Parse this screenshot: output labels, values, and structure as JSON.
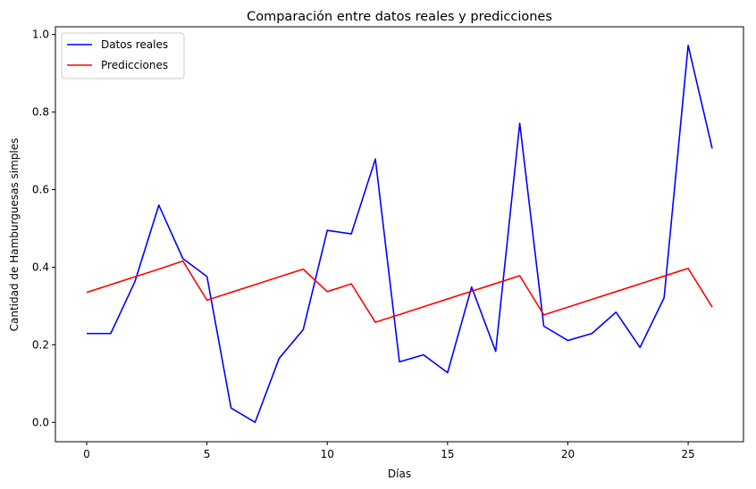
{
  "chart_data": {
    "type": "line",
    "title": "Comparación entre datos reales y predicciones",
    "xlabel": "Días",
    "ylabel": "Cantidad de Hamburguesas simples",
    "xlim": [
      -1.3,
      27.3
    ],
    "ylim": [
      -0.05,
      1.02
    ],
    "xticks": [
      0,
      5,
      10,
      15,
      20,
      25
    ],
    "xtick_labels": [
      "0",
      "5",
      "10",
      "15",
      "20",
      "25"
    ],
    "yticks": [
      0.0,
      0.2,
      0.4,
      0.6,
      0.8,
      1.0
    ],
    "ytick_labels": [
      "0.0",
      "0.2",
      "0.4",
      "0.6",
      "0.8",
      "1.0"
    ],
    "grid": false,
    "legend_position": "top-left",
    "x": [
      0,
      1,
      2,
      3,
      4,
      5,
      6,
      7,
      8,
      9,
      10,
      11,
      12,
      13,
      14,
      15,
      16,
      17,
      18,
      19,
      20,
      21,
      22,
      23,
      24,
      25,
      26
    ],
    "series": [
      {
        "name": "Datos reales",
        "color": "#0000ff",
        "values": [
          0.229,
          0.229,
          0.362,
          0.56,
          0.422,
          0.376,
          0.037,
          0.0,
          0.165,
          0.239,
          0.495,
          0.486,
          0.679,
          0.156,
          0.174,
          0.128,
          0.349,
          0.183,
          0.771,
          0.248,
          0.211,
          0.229,
          0.284,
          0.193,
          0.321,
          0.972,
          0.706
        ]
      },
      {
        "name": "Predicciones",
        "color": "#ff0000",
        "values": [
          0.335,
          0.355,
          0.375,
          0.395,
          0.416,
          0.315,
          0.335,
          0.355,
          0.375,
          0.395,
          0.337,
          0.357,
          0.258,
          0.278,
          0.298,
          0.318,
          0.338,
          0.358,
          0.378,
          0.277,
          0.297,
          0.317,
          0.337,
          0.357,
          0.377,
          0.397,
          0.297
        ]
      }
    ]
  }
}
